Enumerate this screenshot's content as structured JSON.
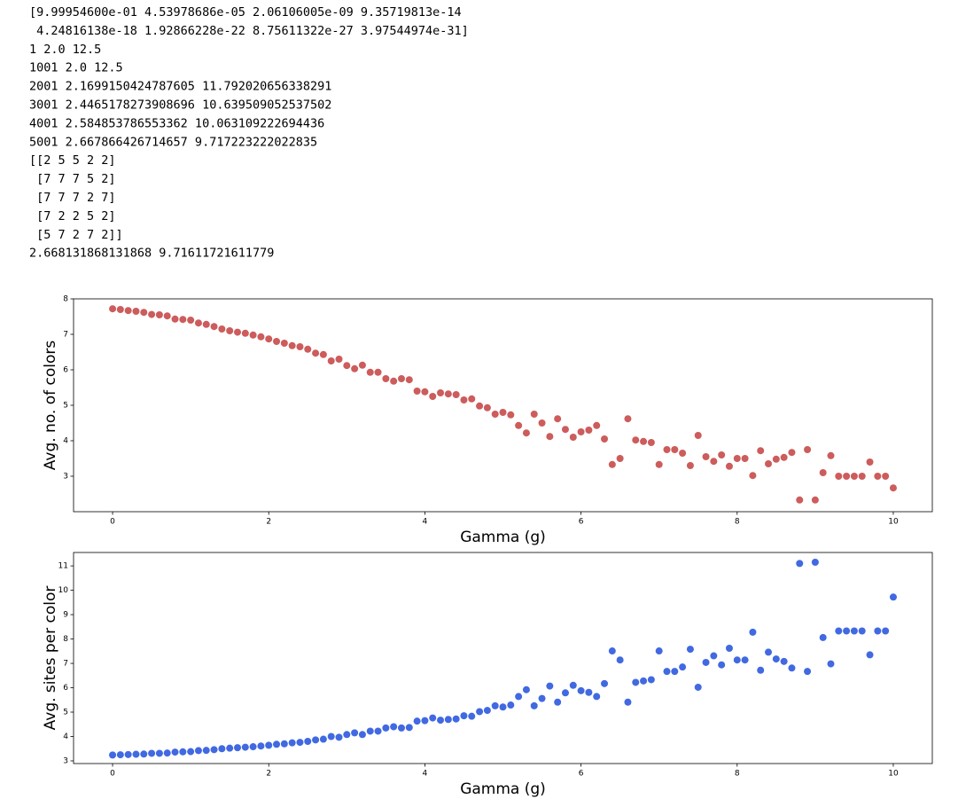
{
  "output_lines": [
    "[9.99954600e-01 4.53978686e-05 2.06106005e-09 9.35719813e-14",
    " 4.24816138e-18 1.92866228e-22 8.75611322e-27 3.97544974e-31]",
    "1 2.0 12.5",
    "1001 2.0 12.5",
    "2001 2.1699150424787605 11.792020656338291",
    "3001 2.4465178273908696 10.639509052537502",
    "4001 2.584853786553362 10.063109222694436",
    "5001 2.667866426714657 9.717223222022835",
    "[[2 5 5 2 2]",
    " [7 7 7 5 2]",
    " [7 7 7 2 7]",
    " [7 2 2 5 2]",
    " [5 7 2 7 2]]",
    "2.668131868131868 9.71611721611779"
  ],
  "chart_data": [
    {
      "type": "scatter",
      "x_label": "Gamma (g)",
      "y_label": "Avg. no. of colors",
      "color": "#cd5c5c",
      "xlim": [
        -0.5,
        10.5
      ],
      "xticks": [
        0,
        2,
        4,
        6,
        8,
        10
      ],
      "ylim": [
        2,
        8
      ],
      "yticks": [
        3,
        4,
        5,
        6,
        7,
        8
      ],
      "x": [
        0,
        0.1,
        0.2,
        0.3,
        0.4,
        0.5,
        0.6,
        0.7,
        0.8,
        0.9,
        1,
        1.1,
        1.2,
        1.3,
        1.4,
        1.5,
        1.6,
        1.7,
        1.8,
        1.9,
        2,
        2.1,
        2.2,
        2.3,
        2.4,
        2.5,
        2.6,
        2.7,
        2.8,
        2.9,
        3,
        3.1,
        3.2,
        3.3,
        3.4,
        3.5,
        3.6,
        3.7,
        3.8,
        3.9,
        4,
        4.1,
        4.2,
        4.3,
        4.4,
        4.5,
        4.6,
        4.7,
        4.8,
        4.9,
        5,
        5.1,
        5.2,
        5.3,
        5.4,
        5.5,
        5.6,
        5.7,
        5.8,
        5.9,
        6,
        6.1,
        6.2,
        6.3,
        6.4,
        6.5,
        6.6,
        6.7,
        6.8,
        6.9,
        7,
        7.1,
        7.2,
        7.3,
        7.4,
        7.5,
        7.6,
        7.7,
        7.8,
        7.9,
        8,
        8.1,
        8.2,
        8.3,
        8.4,
        8.5,
        8.6,
        8.7,
        8.8,
        8.9,
        9,
        9.1,
        9.2,
        9.3,
        9.4,
        9.5,
        9.6,
        9.7,
        9.8,
        9.9,
        10
      ],
      "values": [
        7.72,
        7.7,
        7.67,
        7.65,
        7.62,
        7.56,
        7.55,
        7.52,
        7.43,
        7.42,
        7.4,
        7.32,
        7.28,
        7.22,
        7.15,
        7.1,
        7.06,
        7.03,
        6.98,
        6.93,
        6.87,
        6.8,
        6.75,
        6.68,
        6.65,
        6.58,
        6.47,
        6.43,
        6.25,
        6.3,
        6.12,
        6.03,
        6.13,
        5.93,
        5.93,
        5.75,
        5.68,
        5.75,
        5.72,
        5.4,
        5.38,
        5.25,
        5.35,
        5.32,
        5.3,
        5.15,
        5.18,
        4.98,
        4.93,
        4.75,
        4.8,
        4.73,
        4.43,
        4.22,
        4.75,
        4.5,
        4.12,
        4.62,
        4.32,
        4.1,
        4.25,
        4.3,
        4.43,
        4.05,
        3.33,
        3.5,
        4.62,
        4.02,
        3.98,
        3.95,
        3.33,
        3.75,
        3.75,
        3.65,
        3.3,
        4.15,
        3.55,
        3.42,
        3.6,
        3.28,
        3.5,
        3.5,
        3.02,
        3.72,
        3.35,
        3.48,
        3.53,
        3.67,
        2.33,
        3.75,
        2.33,
        3.1,
        3.58,
        3.0,
        3.0,
        3.0,
        3.0,
        3.4,
        3.0,
        3.0,
        2.67
      ]
    },
    {
      "type": "scatter",
      "x_label": "Gamma (g)",
      "y_label": "Avg. sites per color",
      "color": "#4169e1",
      "xlim": [
        -0.5,
        10.5
      ],
      "xticks": [
        0,
        2,
        4,
        6,
        8,
        10
      ],
      "ylim": [
        2.89,
        11.55
      ],
      "yticks": [
        3,
        4,
        5,
        6,
        7,
        8,
        9,
        10,
        11
      ],
      "x": [
        0,
        0.1,
        0.2,
        0.3,
        0.4,
        0.5,
        0.6,
        0.7,
        0.8,
        0.9,
        1,
        1.1,
        1.2,
        1.3,
        1.4,
        1.5,
        1.6,
        1.7,
        1.8,
        1.9,
        2,
        2.1,
        2.2,
        2.3,
        2.4,
        2.5,
        2.6,
        2.7,
        2.8,
        2.9,
        3,
        3.1,
        3.2,
        3.3,
        3.4,
        3.5,
        3.6,
        3.7,
        3.8,
        3.9,
        4,
        4.1,
        4.2,
        4.3,
        4.4,
        4.5,
        4.6,
        4.7,
        4.8,
        4.9,
        5,
        5.1,
        5.2,
        5.3,
        5.4,
        5.5,
        5.6,
        5.7,
        5.8,
        5.9,
        6,
        6.1,
        6.2,
        6.3,
        6.4,
        6.5,
        6.6,
        6.7,
        6.8,
        6.9,
        7,
        7.1,
        7.2,
        7.3,
        7.4,
        7.5,
        7.6,
        7.7,
        7.8,
        7.9,
        8,
        8.1,
        8.2,
        8.3,
        8.4,
        8.5,
        8.6,
        8.7,
        8.8,
        8.9,
        9,
        9.1,
        9.2,
        9.3,
        9.4,
        9.5,
        9.6,
        9.7,
        9.8,
        9.9,
        10
      ],
      "values": [
        3.24,
        3.25,
        3.26,
        3.27,
        3.28,
        3.31,
        3.31,
        3.32,
        3.36,
        3.37,
        3.38,
        3.42,
        3.43,
        3.46,
        3.5,
        3.52,
        3.54,
        3.56,
        3.58,
        3.61,
        3.64,
        3.68,
        3.7,
        3.74,
        3.76,
        3.8,
        3.86,
        3.89,
        4.0,
        3.97,
        4.08,
        4.15,
        4.08,
        4.22,
        4.22,
        4.35,
        4.4,
        4.35,
        4.37,
        4.63,
        4.65,
        4.76,
        4.67,
        4.7,
        4.72,
        4.85,
        4.83,
        5.02,
        5.07,
        5.26,
        5.21,
        5.29,
        5.64,
        5.92,
        5.26,
        5.56,
        6.07,
        5.41,
        5.79,
        6.1,
        5.88,
        5.81,
        5.64,
        6.17,
        7.51,
        7.14,
        5.41,
        6.22,
        6.28,
        6.33,
        7.51,
        6.67,
        6.67,
        6.85,
        7.58,
        6.02,
        7.04,
        7.31,
        6.94,
        7.62,
        7.14,
        7.14,
        8.28,
        6.72,
        7.46,
        7.18,
        7.08,
        6.81,
        11.1,
        6.67,
        11.15,
        8.06,
        6.98,
        8.33,
        8.33,
        8.33,
        8.33,
        7.35,
        8.33,
        8.33,
        9.72
      ]
    }
  ]
}
